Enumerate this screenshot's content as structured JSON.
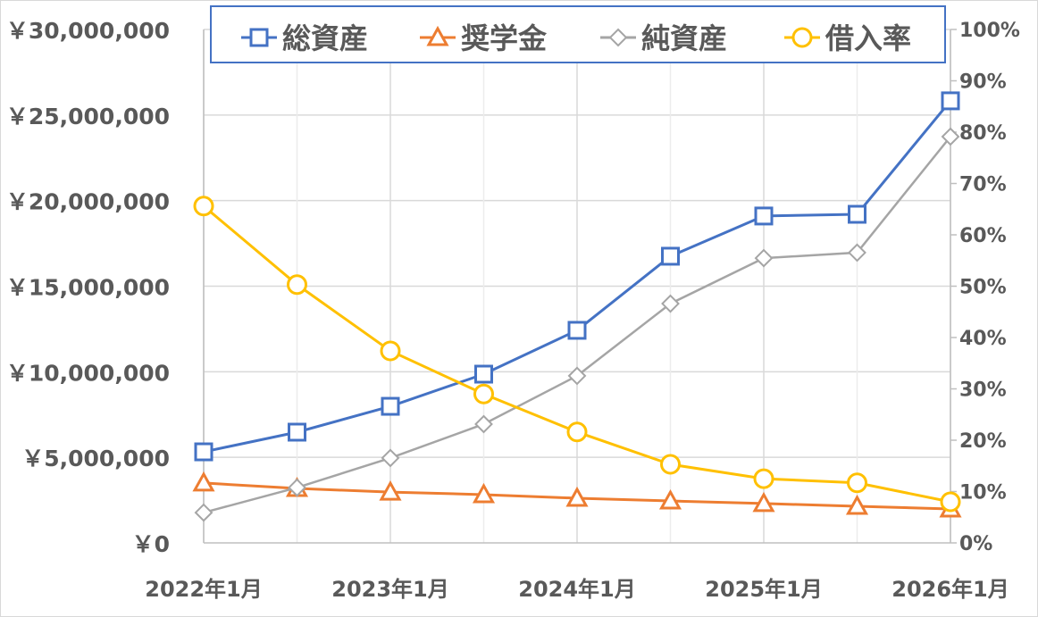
{
  "chart_data": {
    "type": "line",
    "title": "",
    "x": [
      "2022年1月",
      "2022年7月",
      "2023年1月",
      "2023年7月",
      "2024年1月",
      "2024年7月",
      "2025年1月",
      "2025年7月",
      "2026年1月"
    ],
    "x_tick_labels": [
      "2022年1月",
      "2023年1月",
      "2024年1月",
      "2025年1月",
      "2026年1月"
    ],
    "left_axis": {
      "ylim": [
        0,
        30000000
      ],
      "tick_labels": [
        "￥0",
        "￥5,000,000",
        "￥10,000,000",
        "￥15,000,000",
        "￥20,000,000",
        "￥25,000,000",
        "￥30,000,000"
      ]
    },
    "right_axis": {
      "ylim": [
        0,
        100
      ],
      "tick_labels": [
        "0%",
        "10%",
        "20%",
        "30%",
        "40%",
        "50%",
        "60%",
        "70%",
        "80%",
        "90%",
        "100%"
      ]
    },
    "grid": true,
    "legend_position": "top",
    "series": [
      {
        "name": "総資産",
        "axis": "left",
        "marker": "square",
        "color": "#4472C4",
        "values": [
          5320000,
          6470000,
          7980000,
          9860000,
          12420000,
          16750000,
          19100000,
          19200000,
          25830000
        ]
      },
      {
        "name": "奨学金",
        "axis": "left",
        "marker": "triangle",
        "color": "#ED7D31",
        "values": [
          3500000,
          3180000,
          2970000,
          2820000,
          2610000,
          2450000,
          2300000,
          2140000,
          1980000
        ]
      },
      {
        "name": "純資産",
        "axis": "left",
        "marker": "diamond",
        "color": "#A5A5A5",
        "values": [
          1770000,
          3230000,
          4960000,
          6940000,
          9760000,
          13980000,
          16640000,
          16960000,
          23740000
        ]
      },
      {
        "name": "借入率",
        "axis": "right",
        "marker": "circle",
        "color": "#FFC000",
        "values": [
          65.6,
          50.3,
          37.4,
          29.0,
          21.6,
          15.3,
          12.5,
          11.7,
          8.0
        ]
      }
    ]
  }
}
